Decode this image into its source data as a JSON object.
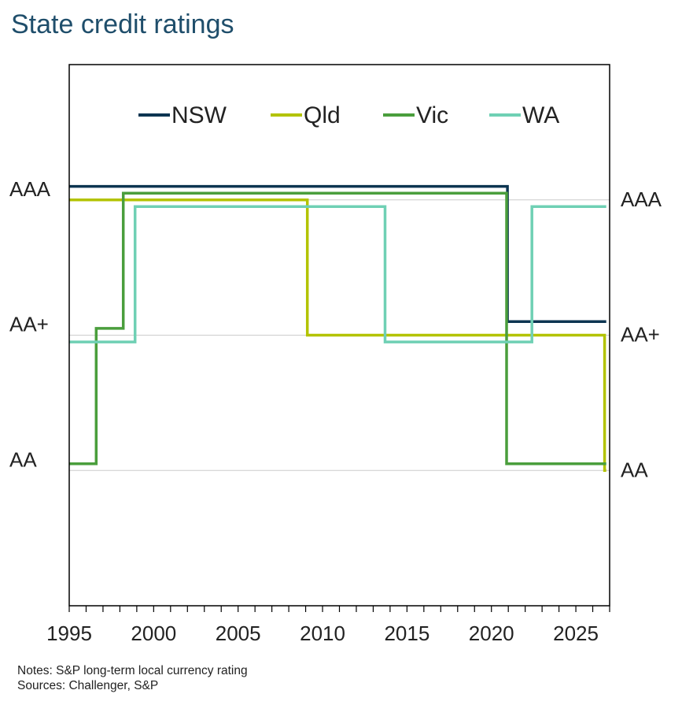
{
  "chart_data": {
    "type": "line",
    "title": "State credit ratings",
    "xlim": [
      1995,
      2027
    ],
    "xticks": [
      1995,
      2000,
      2005,
      2010,
      2015,
      2020,
      2025
    ],
    "ylevels": [
      {
        "label": "AA",
        "value": 0
      },
      {
        "label": "AA+",
        "value": 1
      },
      {
        "label": "AAA",
        "value": 2
      }
    ],
    "ylim": [
      -1,
      3
    ],
    "grid": true,
    "legend_position": "top",
    "series": [
      {
        "name": "NSW",
        "color": "#0d3551",
        "offset": 0.1,
        "points": [
          [
            1995,
            2
          ],
          [
            2020.95,
            2
          ],
          [
            2020.95,
            1
          ],
          [
            2026.8,
            1
          ]
        ]
      },
      {
        "name": "Qld",
        "color": "#b3c300",
        "offset": 0,
        "points": [
          [
            1995,
            2
          ],
          [
            2009.1,
            2
          ],
          [
            2009.1,
            1
          ],
          [
            2026.7,
            1
          ],
          [
            2026.7,
            0
          ],
          [
            2026.8,
            0
          ]
        ]
      },
      {
        "name": "Vic",
        "color": "#4a9e3c",
        "offset": 0.05,
        "points": [
          [
            1995,
            0
          ],
          [
            1996.6,
            0
          ],
          [
            1996.6,
            1
          ],
          [
            1998.2,
            1
          ],
          [
            1998.2,
            2
          ],
          [
            2020.9,
            2
          ],
          [
            2020.9,
            0
          ],
          [
            2026.8,
            0
          ]
        ]
      },
      {
        "name": "WA",
        "color": "#6fd0b4",
        "offset": -0.05,
        "points": [
          [
            1995,
            1
          ],
          [
            1998.9,
            1
          ],
          [
            1998.9,
            2
          ],
          [
            2013.7,
            2
          ],
          [
            2013.7,
            1
          ],
          [
            2022.4,
            1
          ],
          [
            2022.4,
            2
          ],
          [
            2026.8,
            2
          ]
        ]
      }
    ]
  },
  "notes": [
    "Notes: S&P long-term local currency rating",
    "Sources: Challenger, S&P"
  ]
}
